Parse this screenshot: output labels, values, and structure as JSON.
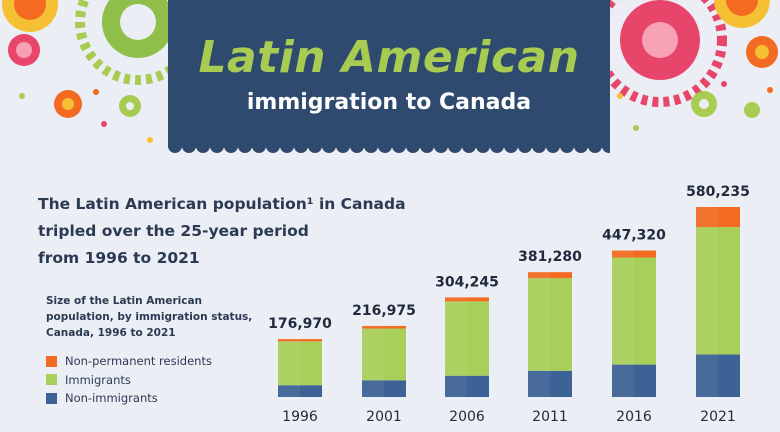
{
  "header": {
    "title_line1": "Latin American",
    "title_line2": "immigration to Canada"
  },
  "headline": {
    "line1": "The Latin American population¹ in Canada",
    "line2": "tripled over the 25-year period",
    "line3": "from 1996 to 2021"
  },
  "chart_subtitle": {
    "line1": "Size of the Latin American",
    "line2": "population, by immigration status,",
    "line3": "Canada, 1996 to 2021"
  },
  "legend": [
    {
      "label": "Non-permanent residents",
      "color": "#f26b21"
    },
    {
      "label": "Immigrants",
      "color": "#a8cf5a"
    },
    {
      "label": "Non-immigrants",
      "color": "#3d6296"
    }
  ],
  "chart_data": {
    "type": "bar",
    "stacked": true,
    "categories": [
      "1996",
      "2001",
      "2006",
      "2011",
      "2016",
      "2021"
    ],
    "totals": [
      176970,
      216975,
      304245,
      381280,
      447320,
      580235
    ],
    "total_labels": [
      "176,970",
      "216,975",
      "304,245",
      "381,280",
      "447,320",
      "580,235"
    ],
    "series": [
      {
        "name": "Non-immigrants",
        "color": "#3d6296",
        "values": [
          36000,
          51000,
          65000,
          80000,
          99000,
          130000
        ]
      },
      {
        "name": "Immigrants",
        "color": "#a8cf5a",
        "values": [
          134000,
          158000,
          227000,
          283000,
          327000,
          389000
        ]
      },
      {
        "name": "Non-permanent residents",
        "color": "#f26b21",
        "values": [
          6970,
          7975,
          12245,
          18280,
          21320,
          61235
        ]
      }
    ],
    "ylim": [
      0,
      600000
    ],
    "grid": false
  }
}
